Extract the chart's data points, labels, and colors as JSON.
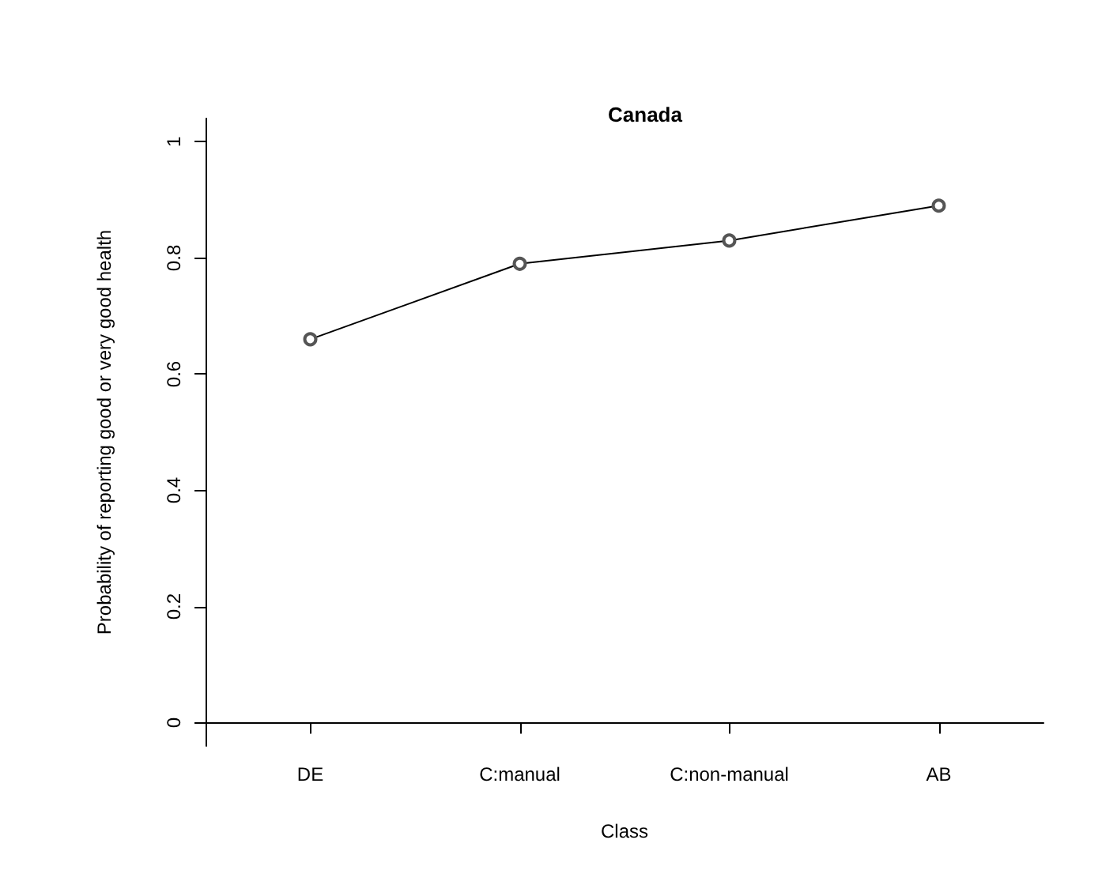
{
  "chart_data": {
    "type": "line",
    "title": "Canada",
    "xlabel": "Class",
    "ylabel": "Probability of reporting good or very good health",
    "categories": [
      "DE",
      "C:manual",
      "C:non-manual",
      "AB"
    ],
    "series": [
      {
        "color": "#000000",
        "values": [
          0.66,
          0.79,
          0.83,
          0.89
        ]
      }
    ],
    "ylim": [
      -0.04,
      1.04
    ],
    "yticks": [
      0,
      0.2,
      0.4,
      0.6,
      0.8,
      1
    ],
    "grid": false,
    "marker": "circle",
    "line_style": "solid"
  }
}
